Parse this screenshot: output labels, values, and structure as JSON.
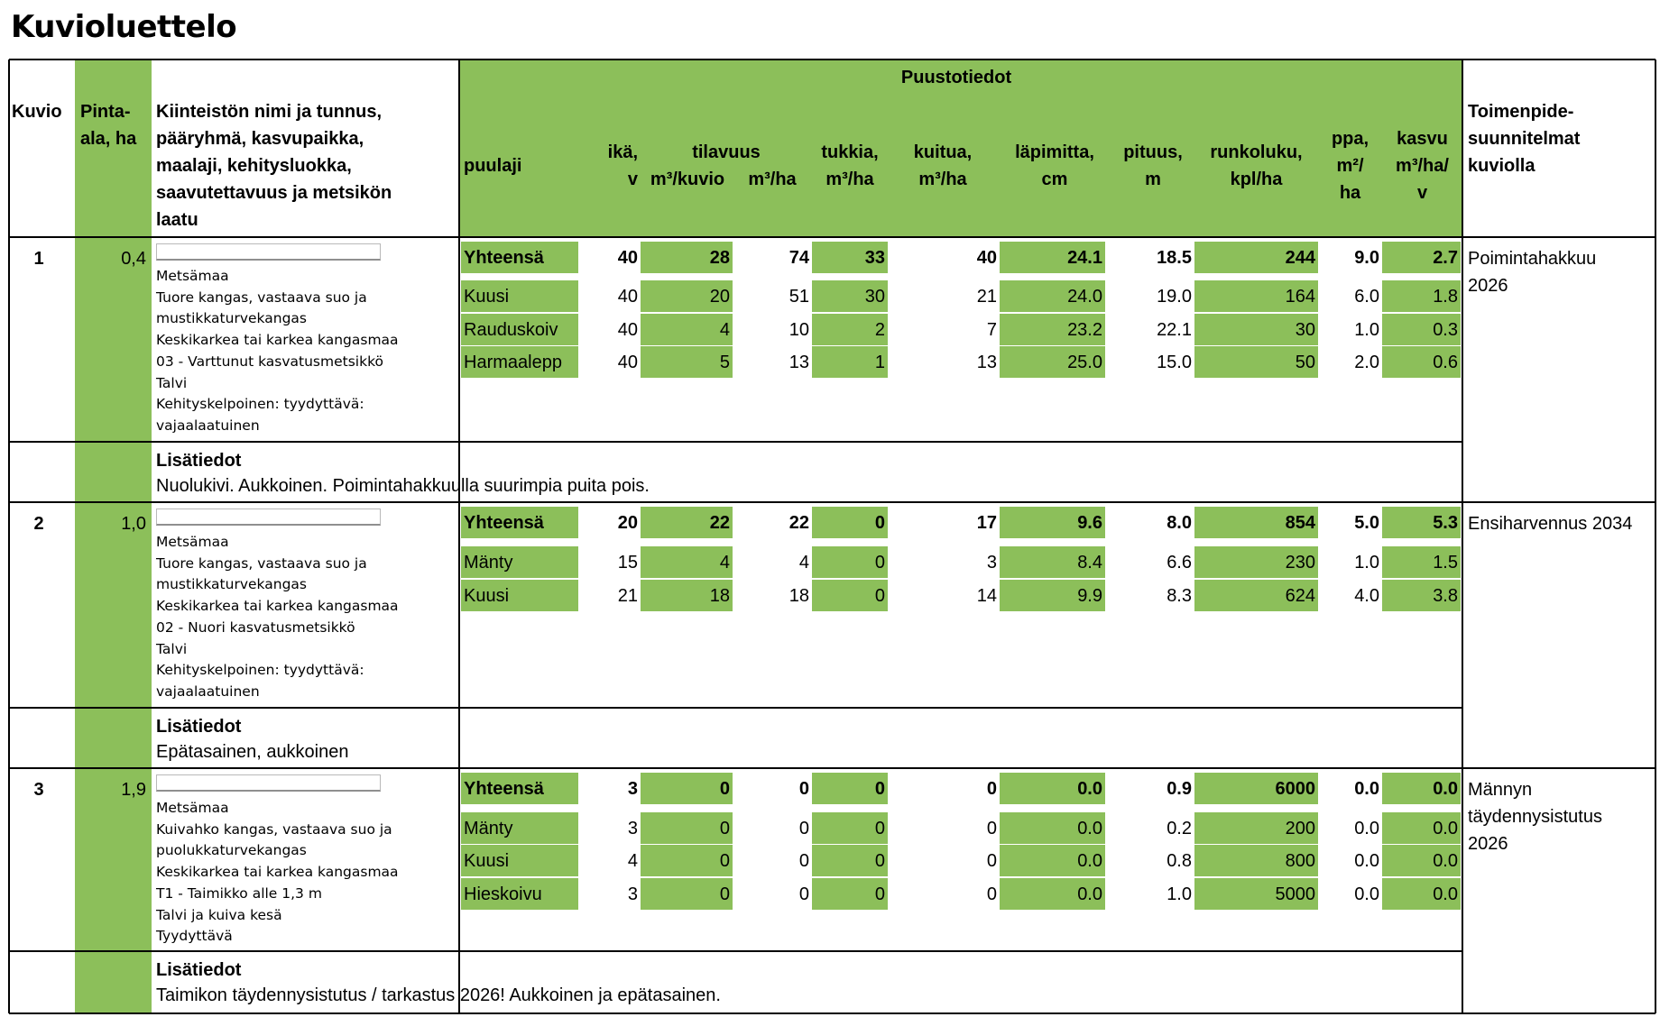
{
  "title": "Kuvioluettelo",
  "colors": {
    "green": "#8cbf5a",
    "border": "#000000"
  },
  "header": {
    "kuvio": "Kuvio",
    "pinta_1": "Pinta-",
    "pinta_2": "ala, ha",
    "kiinteisto": [
      "Kiinteistön nimi ja tunnus,",
      "pääryhmä, kasvupaikka,",
      "maalaji, kehitysluokka,",
      "saavutettavuus ja metsikön",
      "laatu"
    ],
    "puustotiedot": "Puustotiedot",
    "puulaji": "puulaji",
    "ika_1": "ikä,",
    "ika_2": "v",
    "tilavuus": "tilavuus",
    "tilavuus_kuvio": "m³/kuvio",
    "tilavuus_ha": "m³/ha",
    "tukkia_1": "tukkia,",
    "tukkia_2": "m³/ha",
    "kuitua_1": "kuitua,",
    "kuitua_2": "m³/ha",
    "lapimitta_1": "läpimitta,",
    "lapimitta_2": "cm",
    "pituus_1": "pituus,",
    "pituus_2": "m",
    "runkoluku_1": "runkoluku,",
    "runkoluku_2": "kpl/ha",
    "ppa_1": "ppa,",
    "ppa_2": "m²/",
    "ppa_3": "ha",
    "kasvu_1": "kasvu",
    "kasvu_2": "m³/ha/",
    "kasvu_3": "v",
    "toimenpide": [
      "Toimenpide-",
      "suunnitelmat",
      "kuviolla"
    ]
  },
  "lisatiedot_label": "Lisätiedot",
  "patterns": [
    {
      "kuvio": "1",
      "pinta_ala": "0,4",
      "details": [
        "Metsämaa",
        "Tuore kangas, vastaava suo ja",
        "mustikkaturvekangas",
        "Keskikarkea tai karkea kangasmaa",
        "03 - Varttunut kasvatusmetsikkö",
        "Talvi",
        "Kehityskelpoinen: tyydyttävä:",
        "vajaalaatuinen"
      ],
      "rows": [
        {
          "puulaji": "Yhteensä",
          "ika": "40",
          "tilavuus_kuvio": "28",
          "tilavuus_ha": "74",
          "tukkia": "33",
          "kuitua": "40",
          "lapimitta": "24.1",
          "pituus": "18.5",
          "runkoluku": "244",
          "ppa": "9.0",
          "kasvu": "2.7",
          "total": true
        },
        {
          "puulaji": "Kuusi",
          "ika": "40",
          "tilavuus_kuvio": "20",
          "tilavuus_ha": "51",
          "tukkia": "30",
          "kuitua": "21",
          "lapimitta": "24.0",
          "pituus": "19.0",
          "runkoluku": "164",
          "ppa": "6.0",
          "kasvu": "1.8"
        },
        {
          "puulaji": "Rauduskoiv",
          "ika": "40",
          "tilavuus_kuvio": "4",
          "tilavuus_ha": "10",
          "tukkia": "2",
          "kuitua": "7",
          "lapimitta": "23.2",
          "pituus": "22.1",
          "runkoluku": "30",
          "ppa": "1.0",
          "kasvu": "0.3"
        },
        {
          "puulaji": "Harmaalepp",
          "ika": "40",
          "tilavuus_kuvio": "5",
          "tilavuus_ha": "13",
          "tukkia": "1",
          "kuitua": "13",
          "lapimitta": "25.0",
          "pituus": "15.0",
          "runkoluku": "50",
          "ppa": "2.0",
          "kasvu": "0.6"
        }
      ],
      "toimenpide": [
        "Poimintahakkuu",
        "2026"
      ],
      "lisatiedot": "Nuolukivi. Aukkoinen. Poimintahakkuulla suurimpia puita pois."
    },
    {
      "kuvio": "2",
      "pinta_ala": "1,0",
      "details": [
        "Metsämaa",
        "Tuore kangas, vastaava suo ja",
        "mustikkaturvekangas",
        "Keskikarkea tai karkea kangasmaa",
        "02 - Nuori kasvatusmetsikkö",
        "Talvi",
        "Kehityskelpoinen: tyydyttävä:",
        "vajaalaatuinen"
      ],
      "rows": [
        {
          "puulaji": "Yhteensä",
          "ika": "20",
          "tilavuus_kuvio": "22",
          "tilavuus_ha": "22",
          "tukkia": "0",
          "kuitua": "17",
          "lapimitta": "9.6",
          "pituus": "8.0",
          "runkoluku": "854",
          "ppa": "5.0",
          "kasvu": "5.3",
          "total": true
        },
        {
          "puulaji": "Mänty",
          "ika": "15",
          "tilavuus_kuvio": "4",
          "tilavuus_ha": "4",
          "tukkia": "0",
          "kuitua": "3",
          "lapimitta": "8.4",
          "pituus": "6.6",
          "runkoluku": "230",
          "ppa": "1.0",
          "kasvu": "1.5"
        },
        {
          "puulaji": "Kuusi",
          "ika": "21",
          "tilavuus_kuvio": "18",
          "tilavuus_ha": "18",
          "tukkia": "0",
          "kuitua": "14",
          "lapimitta": "9.9",
          "pituus": "8.3",
          "runkoluku": "624",
          "ppa": "4.0",
          "kasvu": "3.8"
        }
      ],
      "toimenpide": [
        "Ensiharvennus 2034"
      ],
      "lisatiedot": "Epätasainen, aukkoinen"
    },
    {
      "kuvio": "3",
      "pinta_ala": "1,9",
      "details": [
        "Metsämaa",
        "Kuivahko kangas, vastaava suo ja",
        "puolukkaturvekangas",
        "Keskikarkea tai karkea kangasmaa",
        "T1 - Taimikko alle 1,3 m",
        "Talvi ja kuiva kesä",
        "Tyydyttävä"
      ],
      "rows": [
        {
          "puulaji": "Yhteensä",
          "ika": "3",
          "tilavuus_kuvio": "0",
          "tilavuus_ha": "0",
          "tukkia": "0",
          "kuitua": "0",
          "lapimitta": "0.0",
          "pituus": "0.9",
          "runkoluku": "6000",
          "ppa": "0.0",
          "kasvu": "0.0",
          "total": true
        },
        {
          "puulaji": "Mänty",
          "ika": "3",
          "tilavuus_kuvio": "0",
          "tilavuus_ha": "0",
          "tukkia": "0",
          "kuitua": "0",
          "lapimitta": "0.0",
          "pituus": "0.2",
          "runkoluku": "200",
          "ppa": "0.0",
          "kasvu": "0.0"
        },
        {
          "puulaji": "Kuusi",
          "ika": "4",
          "tilavuus_kuvio": "0",
          "tilavuus_ha": "0",
          "tukkia": "0",
          "kuitua": "0",
          "lapimitta": "0.0",
          "pituus": "0.8",
          "runkoluku": "800",
          "ppa": "0.0",
          "kasvu": "0.0"
        },
        {
          "puulaji": "Hieskoivu",
          "ika": "3",
          "tilavuus_kuvio": "0",
          "tilavuus_ha": "0",
          "tukkia": "0",
          "kuitua": "0",
          "lapimitta": "0.0",
          "pituus": "1.0",
          "runkoluku": "5000",
          "ppa": "0.0",
          "kasvu": "0.0"
        }
      ],
      "toimenpide": [
        "Männyn",
        "täydennysistutus",
        "2026"
      ],
      "lisatiedot": "Taimikon täydennysistutus / tarkastus 2026! Aukkoinen ja epätasainen."
    }
  ]
}
